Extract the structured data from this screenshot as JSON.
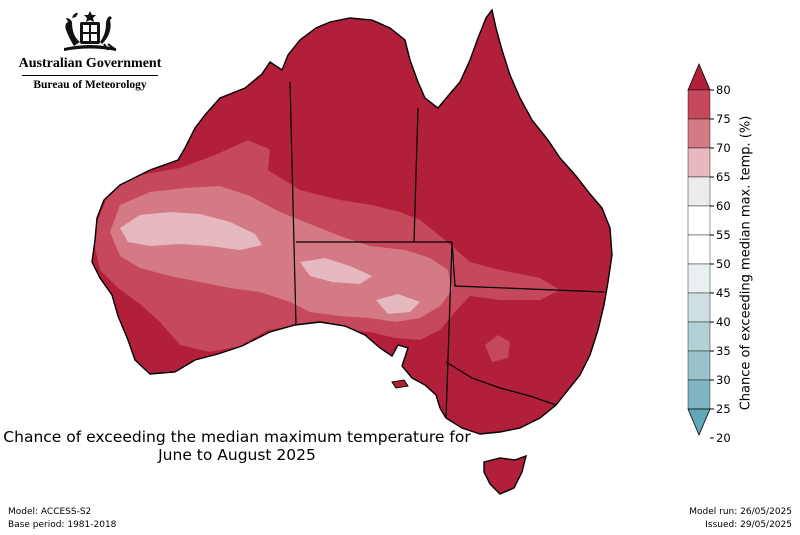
{
  "header": {
    "government": "Australian Government",
    "bureau": "Bureau of Meteorology"
  },
  "map": {
    "title_line1": "Chance of exceeding the median maximum temperature for",
    "title_line2": "June to August 2025",
    "region": "Australia",
    "dominant_category": "70-75",
    "colors": {
      "c75_80": "#b11f3a",
      "c70_75": "#c5485d",
      "c65_70": "#d47a85",
      "c60_65": "#e6b9bf"
    }
  },
  "legend": {
    "label": "Chance of exceeding median max. temp. (%)",
    "ticks": [
      "80",
      "75",
      "70",
      "65",
      "60",
      "55",
      "50",
      "45",
      "40",
      "35",
      "30",
      "25",
      "20"
    ],
    "colors": [
      "#b11f3a",
      "#c5485d",
      "#d47a85",
      "#e6b9bf",
      "#ececec",
      "#ffffff",
      "#ffffff",
      "#eaf0f1",
      "#cfdfe2",
      "#b2d0d6",
      "#9ac2ca",
      "#80b6c2",
      "#5fa8ba"
    ]
  },
  "footer": {
    "model": "Model: ACCESS-S2",
    "base_period": "Base period: 1981-2018",
    "model_run": "Model run: 26/05/2025",
    "issued": "Issued: 29/05/2025"
  }
}
